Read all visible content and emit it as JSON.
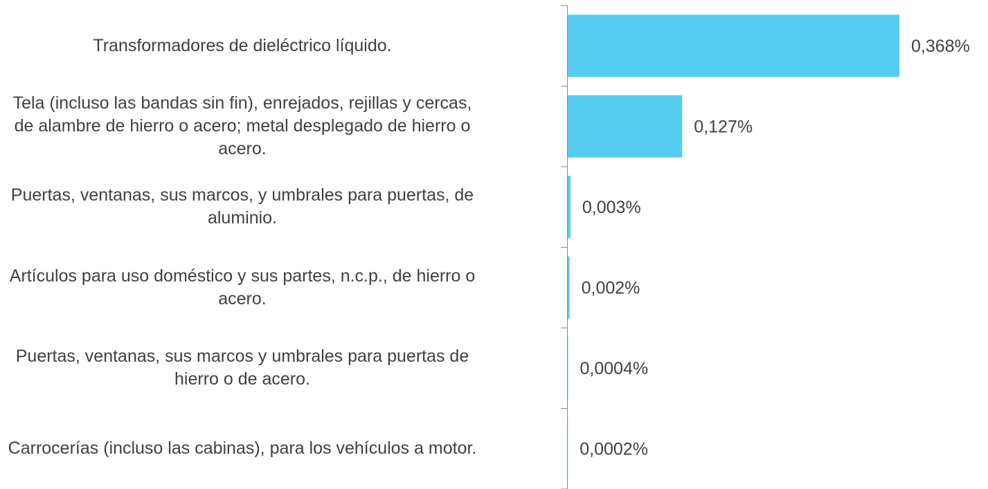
{
  "chart_data": {
    "type": "barh",
    "categories": [
      "Transformadores de dieléctrico líquido.",
      "Tela (incluso las bandas sin fin), enrejados, rejillas y cercas, de alambre de hierro o acero; metal desplegado de hierro o acero.",
      "Puertas, ventanas, sus marcos, y umbrales para puertas, de aluminio.",
      "Artículos para uso doméstico y sus partes, n.c.p., de hierro o acero.",
      "Puertas, ventanas, sus marcos y umbrales para puertas de hierro o de acero.",
      "Carrocerías (incluso las cabinas), para los vehículos a motor."
    ],
    "values": [
      0.368,
      0.127,
      0.003,
      0.002,
      0.0004,
      0.0002
    ],
    "value_labels": [
      "0,368%",
      "0,127%",
      "0,003%",
      "0,002%",
      "0,0004%",
      "0,0002%"
    ],
    "color": "#56cdf0"
  }
}
